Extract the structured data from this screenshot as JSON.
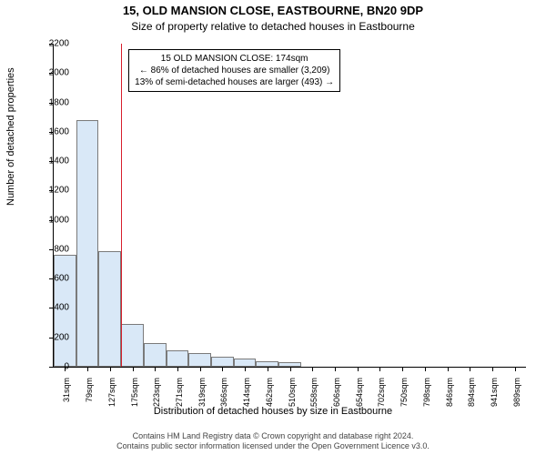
{
  "title_line1": "15, OLD MANSION CLOSE, EASTBOURNE, BN20 9DP",
  "title_line2": "Size of property relative to detached houses in Eastbourne",
  "y_axis_label": "Number of detached properties",
  "x_axis_label": "Distribution of detached houses by size in Eastbourne",
  "footer_line1": "Contains HM Land Registry data © Crown copyright and database right 2024.",
  "footer_line2": "Contains public sector information licensed under the Open Government Licence v3.0.",
  "chart": {
    "type": "histogram",
    "ylim": [
      0,
      2200
    ],
    "yticks": [
      0,
      200,
      400,
      600,
      800,
      1000,
      1200,
      1400,
      1600,
      1800,
      2000,
      2200
    ],
    "xticks": [
      "31sqm",
      "79sqm",
      "127sqm",
      "175sqm",
      "223sqm",
      "271sqm",
      "319sqm",
      "366sqm",
      "414sqm",
      "462sqm",
      "510sqm",
      "558sqm",
      "606sqm",
      "654sqm",
      "702sqm",
      "750sqm",
      "798sqm",
      "846sqm",
      "894sqm",
      "941sqm",
      "989sqm"
    ],
    "bar_fill": "#d9e8f7",
    "bar_border": "#7a7a7a",
    "reference_line_color": "#d81e2c",
    "reference_bin_index": 3,
    "bars": [
      760,
      1680,
      790,
      290,
      160,
      110,
      90,
      70,
      55,
      40,
      30,
      0,
      0,
      0,
      0,
      0,
      0,
      0,
      0,
      0,
      0
    ],
    "annotation": {
      "line1": "15 OLD MANSION CLOSE: 174sqm",
      "line2": "← 86% of detached houses are smaller (3,209)",
      "line3": "13% of semi-detached houses are larger (493) →"
    },
    "plot_bg": "#ffffff",
    "text_color": "#000000"
  }
}
